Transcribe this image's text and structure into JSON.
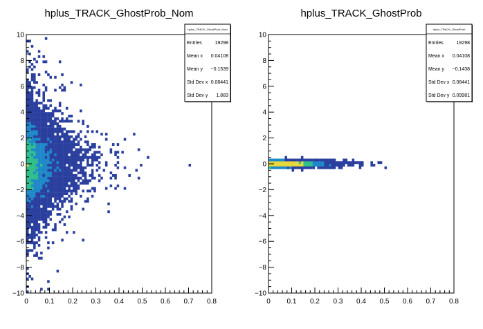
{
  "chart_data": [
    {
      "type": "heatmap",
      "title": "hplus_TRACK_GhostProb_Nom",
      "xlim": [
        0,
        0.8
      ],
      "ylim": [
        -10,
        10
      ],
      "x_ticks": [
        "0",
        "0.1",
        "0.2",
        "0.3",
        "0.4",
        "0.5",
        "0.6",
        "0.7",
        "0.8"
      ],
      "y_ticks": [
        "−10",
        "−8",
        "−6",
        "−4",
        "−2",
        "0",
        "2",
        "4",
        "6",
        "8",
        "10"
      ],
      "stats": {
        "name": "hplus_TRACK_GhostProb_Nom",
        "rows": [
          {
            "label": "Entries",
            "value": "19298"
          },
          {
            "label": "Mean x",
            "value": "0.04108"
          },
          {
            "label": "Mean y",
            "value": "−0.1539"
          },
          {
            "label": "Std Dev x",
            "value": "0.08441"
          },
          {
            "label": "Std Dev y",
            "value": "1.883"
          }
        ]
      },
      "distribution": {
        "center_y": 0,
        "spread_y": 1.883,
        "x_scale": 0.06
      }
    },
    {
      "type": "heatmap",
      "title": "hplus_TRACK_GhostProb",
      "xlim": [
        0,
        0.8
      ],
      "ylim": [
        -10,
        10
      ],
      "x_ticks": [
        "0",
        "0.1",
        "0.2",
        "0.3",
        "0.4",
        "0.5",
        "0.6",
        "0.7",
        "0.8"
      ],
      "y_ticks": [
        "−10",
        "−8",
        "−6",
        "−4",
        "−2",
        "0",
        "2",
        "4",
        "6",
        "8",
        "10"
      ],
      "stats": {
        "name": "hplus_TRACK_GhostProb",
        "rows": [
          {
            "label": "Entries",
            "value": "19298"
          },
          {
            "label": "Mean x",
            "value": "0.04108"
          },
          {
            "label": "Mean y",
            "value": "−0.1438"
          },
          {
            "label": "Std Dev x",
            "value": "0.08441"
          },
          {
            "label": "Std Dev y",
            "value": "0.09981"
          }
        ]
      },
      "distribution": {
        "center_y": 0,
        "spread_y": 0.09981,
        "x_scale": 0.06
      }
    }
  ],
  "colors": {
    "low": "#2a3f9e",
    "mid": "#1e88c8",
    "high": "#2fbf8a",
    "peak": "#e6d83a"
  }
}
